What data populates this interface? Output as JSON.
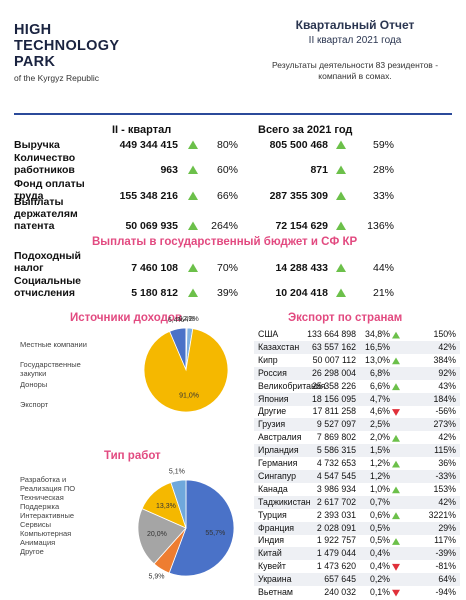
{
  "header": {
    "logo": [
      "HIGH",
      "TECHNOLOGY",
      "PARK"
    ],
    "logo_sub": "of the Kyrgyz Republic",
    "title": "Квартальный Отчет",
    "subtitle": "II квартал 2021 года",
    "note": "Результаты деятельности 83 резидентов - компаний в сомах."
  },
  "summary": {
    "columns": [
      "II - квартал",
      "Всего за 2021 год"
    ],
    "rows": [
      {
        "label": "Выручка",
        "q2": "449 344 415",
        "q2_change": "80%",
        "year": "805 500 468",
        "year_change": "59%"
      },
      {
        "label": "Количество работников",
        "q2": "963",
        "q2_change": "60%",
        "year": "871",
        "year_change": "28%"
      },
      {
        "label": "Фонд оплаты труда",
        "q2": "155 348 216",
        "q2_change": "66%",
        "year": "287 355 309",
        "year_change": "33%"
      },
      {
        "label": "Выплаты держателям патента",
        "q2": "50 069 935",
        "q2_change": "264%",
        "year": "72 154 629",
        "year_change": "136%"
      }
    ]
  },
  "budget": {
    "title": "Выплаты в государственный бюджет и СФ КР",
    "rows": [
      {
        "label": "Подоходный налог",
        "q2": "7 460 108",
        "q2_change": "70%",
        "year": "14 288 433",
        "year_change": "44%"
      },
      {
        "label": "Социальные отчисления",
        "q2": "5 180 812",
        "q2_change": "39%",
        "year": "10 204 418",
        "year_change": "21%"
      }
    ]
  },
  "income_sources": {
    "type": "pie",
    "title": "Источники доходов",
    "categories": [
      "Местные компании",
      "Государственные закупки",
      "Доноры",
      "Экспорт"
    ],
    "values": [
      6.4,
      0.4,
      2.2,
      91.0
    ],
    "value_labels": [
      "6,4%",
      "0,4%",
      "2,2%",
      "91,0%"
    ],
    "colors": [
      "#4a72c8",
      "#a0a0a0",
      "#7fb0e0",
      "#f5b800"
    ]
  },
  "work_types": {
    "type": "pie",
    "title": "Тип работ",
    "categories": [
      "Разработка и Реализация ПО",
      "Техническая Поддержка",
      "Интерактивные Сервисы",
      "Компьютерная Анимация",
      "Другое"
    ],
    "values": [
      55.7,
      5.9,
      20.0,
      13.3,
      5.1
    ],
    "value_labels": [
      "55,7%",
      "5,9%",
      "20,0%",
      "13,3%",
      "5,1%"
    ],
    "colors": [
      "#4a72c8",
      "#ee7d31",
      "#a5a5a5",
      "#f5b800",
      "#6fa8dc"
    ]
  },
  "export": {
    "title": "Экспорт по странам",
    "rows": [
      [
        "США",
        "133 664 898",
        "34,8%",
        "150%"
      ],
      [
        "Казахстан",
        "63 557 162",
        "16,5%",
        "42%"
      ],
      [
        "Кипр",
        "50 007 112",
        "13,0%",
        "384%"
      ],
      [
        "Россия",
        "26 298 004",
        "6,8%",
        "92%"
      ],
      [
        "Великобритания",
        "25 358 226",
        "6,6%",
        "43%"
      ],
      [
        "Япония",
        "18 156 095",
        "4,7%",
        "184%"
      ],
      [
        "Другие",
        "17 811 258",
        "4,6%",
        "-56%"
      ],
      [
        "Грузия",
        "9 527 097",
        "2,5%",
        "273%"
      ],
      [
        "Австралия",
        "7 869 802",
        "2,0%",
        "42%"
      ],
      [
        "Ирландия",
        "5 586 315",
        "1,5%",
        "115%"
      ],
      [
        "Германия",
        "4 732 653",
        "1,2%",
        "36%"
      ],
      [
        "Сингапур",
        "4 547 545",
        "1,2%",
        "-33%"
      ],
      [
        "Канада",
        "3 986 934",
        "1,0%",
        "153%"
      ],
      [
        "Таджикистан",
        "2 617 702",
        "0,7%",
        "42%"
      ],
      [
        "Турция",
        "2 393 031",
        "0,6%",
        "3221%"
      ],
      [
        "Франция",
        "2 028 091",
        "0,5%",
        "29%"
      ],
      [
        "Индия",
        "1 922 757",
        "0,5%",
        "117%"
      ],
      [
        "Китай",
        "1 479 044",
        "0,4%",
        "-39%"
      ],
      [
        "Кувейт",
        "1 473 620",
        "0,4%",
        "-81%"
      ],
      [
        "Украина",
        "657 645",
        "0,2%",
        "64%"
      ],
      [
        "Вьетнам",
        "240 032",
        "0,1%",
        "-94%"
      ]
    ]
  }
}
